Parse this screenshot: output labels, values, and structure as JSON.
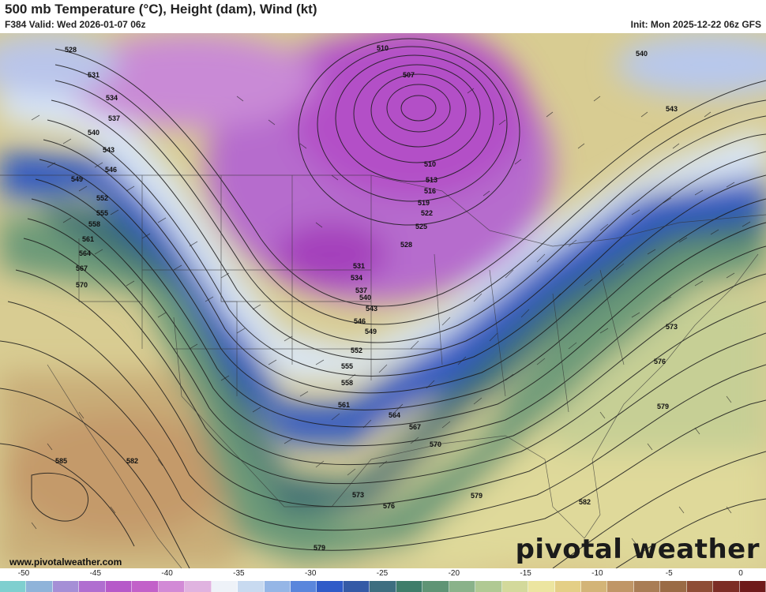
{
  "header": {
    "title": "500 mb Temperature (°C), Height (dam), Wind (kt)",
    "valid": "F384 Valid: Wed 2026-01-07 06z",
    "init": "Init: Mon 2025-12-22 06z GFS"
  },
  "footer": {
    "website": "www.pivotalweather.com",
    "brand": "pivotal weather"
  },
  "colorbar": {
    "ticks": [
      "-50",
      "-45",
      "-40",
      "-35",
      "-30",
      "-25",
      "-20",
      "-15",
      "-10",
      "-5",
      "0"
    ],
    "colors": [
      "#7fcfcf",
      "#8fb3d9",
      "#a58fd6",
      "#b06ed0",
      "#b65ac9",
      "#c261c9",
      "#d28ad6",
      "#e0b3e0",
      "#eef2f8",
      "#c8daf0",
      "#95b6e6",
      "#5a86dc",
      "#2f5bc8",
      "#345aa6",
      "#3e6e80",
      "#3f7d6a",
      "#5f9475",
      "#8ab28a",
      "#b0c993",
      "#d3d99b",
      "#ece5a0",
      "#e4cf86",
      "#d3b477",
      "#c09667",
      "#a97d55",
      "#9a6b45",
      "#8e4d35",
      "#7c2d25",
      "#6e1a1a"
    ]
  },
  "map": {
    "height_labels": [
      "528",
      "531",
      "534",
      "537",
      "540",
      "543",
      "546",
      "549",
      "552",
      "555",
      "558",
      "561",
      "564",
      "567",
      "570",
      "510",
      "507",
      "510",
      "513",
      "516",
      "519",
      "522",
      "525",
      "528",
      "531",
      "534",
      "537",
      "540",
      "543",
      "546",
      "549",
      "552",
      "555",
      "558",
      "561",
      "564",
      "567",
      "570",
      "573",
      "576",
      "579",
      "540",
      "543",
      "573",
      "576",
      "579",
      "582",
      "585",
      "582",
      "579"
    ]
  }
}
